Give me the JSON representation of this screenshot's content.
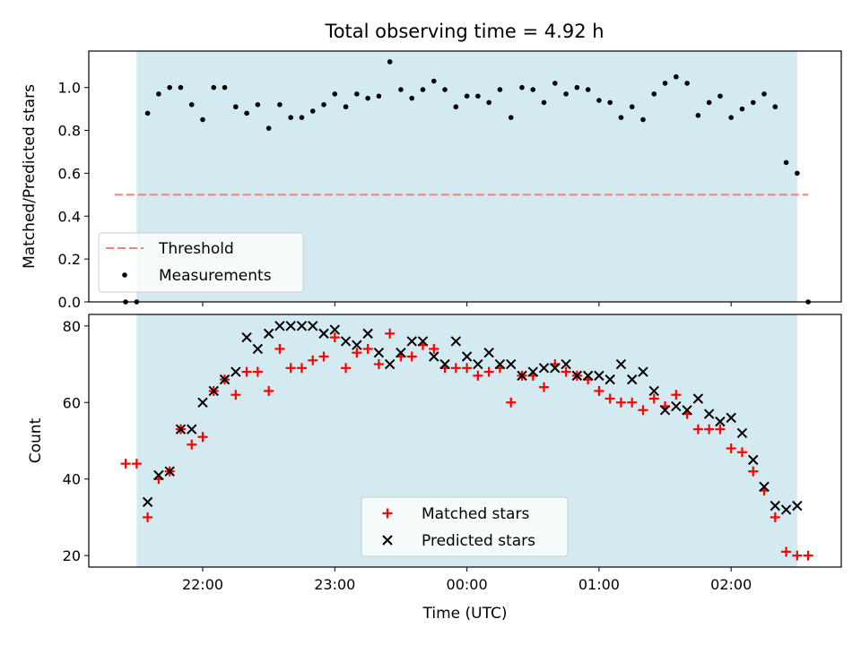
{
  "chart_data": [
    {
      "type": "scatter",
      "title": "Total observing time = 4.92 h",
      "xlabel": "",
      "ylabel": "Matched/Predicted stars",
      "ylim": [
        0,
        1.17
      ],
      "yticks": [
        "0.0",
        "0.2",
        "0.4",
        "0.6",
        "0.8",
        "1.0"
      ],
      "observing_window": [
        "21:30",
        "02:30"
      ],
      "threshold": {
        "name": "Threshold",
        "value": 0.5,
        "color": "#f08080"
      },
      "series": [
        {
          "name": "Measurements",
          "color": "#000000",
          "points": [
            [
              "21:25",
              0.0
            ],
            [
              "21:30",
              0.0
            ],
            [
              "21:35",
              0.88
            ],
            [
              "21:40",
              0.97
            ],
            [
              "21:45",
              1.0
            ],
            [
              "21:50",
              1.0
            ],
            [
              "21:55",
              0.92
            ],
            [
              "22:00",
              0.85
            ],
            [
              "22:05",
              1.0
            ],
            [
              "22:10",
              1.0
            ],
            [
              "22:15",
              0.91
            ],
            [
              "22:20",
              0.88
            ],
            [
              "22:25",
              0.92
            ],
            [
              "22:30",
              0.81
            ],
            [
              "22:35",
              0.92
            ],
            [
              "22:40",
              0.86
            ],
            [
              "22:45",
              0.86
            ],
            [
              "22:50",
              0.89
            ],
            [
              "22:55",
              0.92
            ],
            [
              "23:00",
              0.97
            ],
            [
              "23:05",
              0.91
            ],
            [
              "23:10",
              0.97
            ],
            [
              "23:15",
              0.95
            ],
            [
              "23:20",
              0.96
            ],
            [
              "23:25",
              1.12
            ],
            [
              "23:30",
              0.99
            ],
            [
              "23:35",
              0.95
            ],
            [
              "23:40",
              0.99
            ],
            [
              "23:45",
              1.03
            ],
            [
              "23:50",
              0.99
            ],
            [
              "23:55",
              0.91
            ],
            [
              "00:00",
              0.96
            ],
            [
              "00:05",
              0.96
            ],
            [
              "00:10",
              0.93
            ],
            [
              "00:15",
              0.99
            ],
            [
              "00:20",
              0.86
            ],
            [
              "00:25",
              1.0
            ],
            [
              "00:30",
              0.99
            ],
            [
              "00:35",
              0.93
            ],
            [
              "00:40",
              1.02
            ],
            [
              "00:45",
              0.97
            ],
            [
              "00:50",
              1.0
            ],
            [
              "00:55",
              0.99
            ],
            [
              "01:00",
              0.94
            ],
            [
              "01:05",
              0.93
            ],
            [
              "01:10",
              0.86
            ],
            [
              "01:15",
              0.91
            ],
            [
              "01:20",
              0.85
            ],
            [
              "01:25",
              0.97
            ],
            [
              "01:30",
              1.02
            ],
            [
              "01:35",
              1.05
            ],
            [
              "01:40",
              1.02
            ],
            [
              "01:45",
              0.87
            ],
            [
              "01:50",
              0.93
            ],
            [
              "01:55",
              0.96
            ],
            [
              "02:00",
              0.86
            ],
            [
              "02:05",
              0.9
            ],
            [
              "02:10",
              0.93
            ],
            [
              "02:15",
              0.97
            ],
            [
              "02:20",
              0.91
            ],
            [
              "02:25",
              0.65
            ],
            [
              "02:30",
              0.6
            ],
            [
              "02:35",
              0.0
            ]
          ]
        }
      ],
      "legend": {
        "position": "lower-left",
        "entries": [
          "Threshold",
          "Measurements"
        ]
      },
      "background_color": "#d3eaf0"
    },
    {
      "type": "scatter",
      "title": "",
      "xlabel": "Time (UTC)",
      "ylabel": "Count",
      "ylim": [
        17,
        83
      ],
      "yticks": [
        "20",
        "40",
        "60",
        "80"
      ],
      "xticks": [
        "22:00",
        "23:00",
        "00:00",
        "01:00",
        "02:00"
      ],
      "observing_window": [
        "21:30",
        "02:30"
      ],
      "series": [
        {
          "name": "Matched stars",
          "marker": "+",
          "color": "#ff0000",
          "points": [
            [
              "21:25",
              44
            ],
            [
              "21:30",
              44
            ],
            [
              "21:35",
              30
            ],
            [
              "21:40",
              40
            ],
            [
              "21:45",
              42
            ],
            [
              "21:50",
              53
            ],
            [
              "21:55",
              49
            ],
            [
              "22:00",
              51
            ],
            [
              "22:05",
              63
            ],
            [
              "22:10",
              66
            ],
            [
              "22:15",
              62
            ],
            [
              "22:20",
              68
            ],
            [
              "22:25",
              68
            ],
            [
              "22:30",
              63
            ],
            [
              "22:35",
              74
            ],
            [
              "22:40",
              69
            ],
            [
              "22:45",
              69
            ],
            [
              "22:50",
              71
            ],
            [
              "22:55",
              72
            ],
            [
              "23:00",
              77
            ],
            [
              "23:05",
              69
            ],
            [
              "23:10",
              73
            ],
            [
              "23:15",
              74
            ],
            [
              "23:20",
              70
            ],
            [
              "23:25",
              78
            ],
            [
              "23:30",
              72
            ],
            [
              "23:35",
              72
            ],
            [
              "23:40",
              75
            ],
            [
              "23:45",
              74
            ],
            [
              "23:50",
              69
            ],
            [
              "23:55",
              69
            ],
            [
              "00:00",
              69
            ],
            [
              "00:05",
              67
            ],
            [
              "00:10",
              68
            ],
            [
              "00:15",
              69
            ],
            [
              "00:20",
              60
            ],
            [
              "00:25",
              67
            ],
            [
              "00:30",
              67
            ],
            [
              "00:35",
              64
            ],
            [
              "00:40",
              70
            ],
            [
              "00:45",
              68
            ],
            [
              "00:50",
              67
            ],
            [
              "00:55",
              66
            ],
            [
              "01:00",
              63
            ],
            [
              "01:05",
              61
            ],
            [
              "01:10",
              60
            ],
            [
              "01:15",
              60
            ],
            [
              "01:20",
              58
            ],
            [
              "01:25",
              61
            ],
            [
              "01:30",
              59
            ],
            [
              "01:35",
              62
            ],
            [
              "01:40",
              57
            ],
            [
              "01:45",
              53
            ],
            [
              "01:50",
              53
            ],
            [
              "01:55",
              53
            ],
            [
              "02:00",
              48
            ],
            [
              "02:05",
              47
            ],
            [
              "02:10",
              42
            ],
            [
              "02:15",
              37
            ],
            [
              "02:20",
              30
            ],
            [
              "02:25",
              21
            ],
            [
              "02:30",
              20
            ],
            [
              "02:35",
              20
            ]
          ]
        },
        {
          "name": "Predicted stars",
          "marker": "x",
          "color": "#000000",
          "points": [
            [
              "21:35",
              34
            ],
            [
              "21:40",
              41
            ],
            [
              "21:45",
              42
            ],
            [
              "21:50",
              53
            ],
            [
              "21:55",
              53
            ],
            [
              "22:00",
              60
            ],
            [
              "22:05",
              63
            ],
            [
              "22:10",
              66
            ],
            [
              "22:15",
              68
            ],
            [
              "22:20",
              77
            ],
            [
              "22:25",
              74
            ],
            [
              "22:30",
              78
            ],
            [
              "22:35",
              80
            ],
            [
              "22:40",
              80
            ],
            [
              "22:45",
              80
            ],
            [
              "22:50",
              80
            ],
            [
              "22:55",
              78
            ],
            [
              "23:00",
              79
            ],
            [
              "23:05",
              76
            ],
            [
              "23:10",
              75
            ],
            [
              "23:15",
              78
            ],
            [
              "23:20",
              73
            ],
            [
              "23:25",
              70
            ],
            [
              "23:30",
              73
            ],
            [
              "23:35",
              76
            ],
            [
              "23:40",
              76
            ],
            [
              "23:45",
              72
            ],
            [
              "23:50",
              70
            ],
            [
              "23:55",
              76
            ],
            [
              "00:00",
              72
            ],
            [
              "00:05",
              70
            ],
            [
              "00:10",
              73
            ],
            [
              "00:15",
              70
            ],
            [
              "00:20",
              70
            ],
            [
              "00:25",
              67
            ],
            [
              "00:30",
              68
            ],
            [
              "00:35",
              69
            ],
            [
              "00:40",
              69
            ],
            [
              "00:45",
              70
            ],
            [
              "00:50",
              67
            ],
            [
              "00:55",
              67
            ],
            [
              "01:00",
              67
            ],
            [
              "01:05",
              66
            ],
            [
              "01:10",
              70
            ],
            [
              "01:15",
              66
            ],
            [
              "01:20",
              68
            ],
            [
              "01:25",
              63
            ],
            [
              "01:30",
              58
            ],
            [
              "01:35",
              59
            ],
            [
              "01:40",
              58
            ],
            [
              "01:45",
              61
            ],
            [
              "01:50",
              57
            ],
            [
              "01:55",
              55
            ],
            [
              "02:00",
              56
            ],
            [
              "02:05",
              52
            ],
            [
              "02:10",
              45
            ],
            [
              "02:15",
              38
            ],
            [
              "02:20",
              33
            ],
            [
              "02:25",
              32
            ],
            [
              "02:30",
              33
            ]
          ]
        }
      ],
      "legend": {
        "position": "lower-center",
        "entries": [
          "Matched stars",
          "Predicted stars"
        ]
      },
      "background_color": "#d3eaf0"
    }
  ]
}
